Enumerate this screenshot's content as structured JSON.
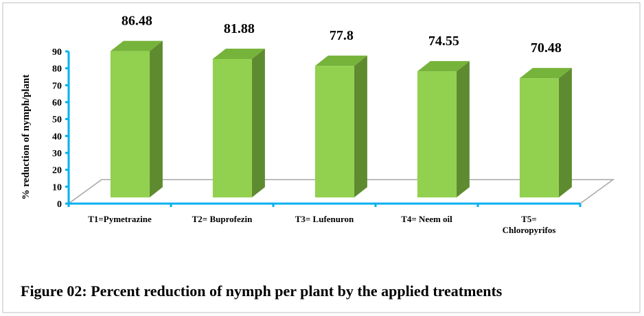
{
  "chart_data": {
    "type": "bar3d",
    "caption": "Figure 02: Percent reduction of nymph per plant by the applied treatments",
    "y_label": "% reduction of nymph/plant",
    "categories": [
      "T1=Pymetrazine",
      "T2= Buprofezin",
      "T3= Lufenuron",
      "T4= Neem oil",
      "T5=\nChloropyrifos"
    ],
    "values": [
      86.48,
      81.88,
      77.8,
      74.55,
      70.48
    ],
    "color": "#92d050",
    "axis_color": "#00b0f0",
    "ylim": [
      0,
      90
    ],
    "yticks": [
      0,
      10,
      20,
      30,
      40,
      50,
      60,
      70,
      80,
      90
    ],
    "grid": false
  }
}
